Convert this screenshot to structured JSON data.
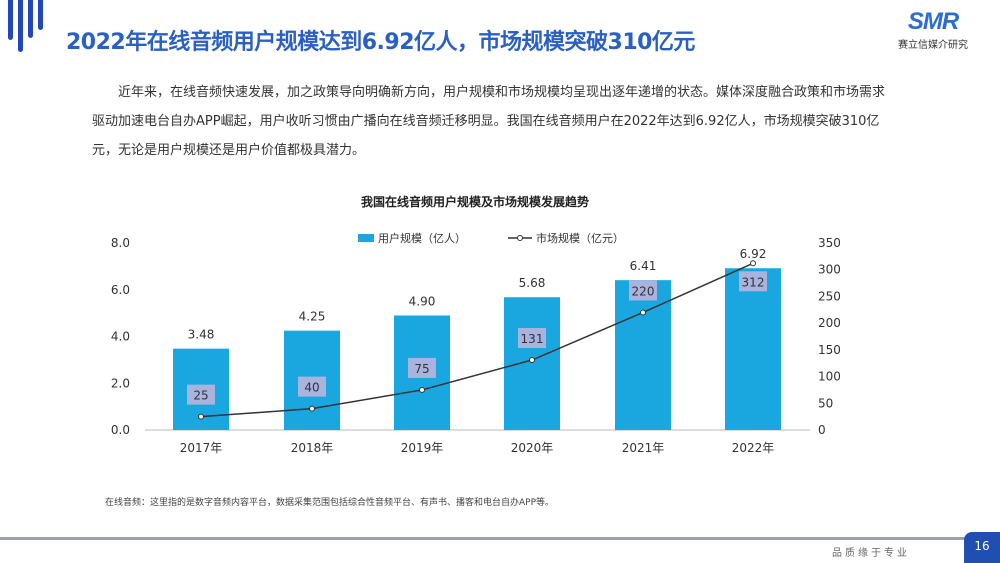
{
  "header": {
    "title": "2022年在线音频用户规模达到6.92亿人，市场规模突破310亿元",
    "logo_mark": "SMR",
    "logo_sub": "赛立信媒介研究"
  },
  "intro": "近年来，在线音频快速发展，加之政策导向明确新方向，用户规模和市场规模均呈现出逐年递增的状态。媒体深度融合政策和市场需求驱动加速电台自办APP崛起，用户收听习惯由广播向在线音频迁移明显。我国在线音频用户在2022年达到6.92亿人，市场规模突破310亿元，无论是用户规模还是用户价值都极具潜力。",
  "chart_data": {
    "type": "bar+line",
    "title": "我国在线音频用户规模及市场规模发展趋势",
    "categories": [
      "2017年",
      "2018年",
      "2019年",
      "2020年",
      "2021年",
      "2022年"
    ],
    "series": [
      {
        "name": "用户规模（亿人）",
        "type": "bar",
        "axis": "left",
        "values": [
          3.48,
          4.25,
          4.9,
          5.68,
          6.41,
          6.92
        ],
        "labels": [
          "3.48",
          "4.25",
          "4.90",
          "5.68",
          "6.41",
          "6.92"
        ],
        "color": "#1aa7e0"
      },
      {
        "name": "市场规模（亿元）",
        "type": "line",
        "axis": "right",
        "values": [
          25,
          40,
          75,
          131,
          220,
          312
        ],
        "labels": [
          "25",
          "40",
          "75",
          "131",
          "220",
          "312"
        ],
        "color": "#333333"
      }
    ],
    "left_axis": {
      "range": [
        0,
        8
      ],
      "ticks": [
        "0.0",
        "2.0",
        "4.0",
        "6.0",
        "8.0"
      ]
    },
    "right_axis": {
      "range": [
        0,
        350
      ],
      "ticks": [
        "0",
        "50",
        "100",
        "150",
        "200",
        "250",
        "300",
        "350"
      ]
    },
    "legend": "top",
    "grid": false
  },
  "footnote": "在线音频：这里指的是数字音频内容平台，数据采集范围包括综合性音频平台、有声书、播客和电台自办APP等。",
  "footer": {
    "slogan": "品质缘于专业",
    "page": "16"
  }
}
